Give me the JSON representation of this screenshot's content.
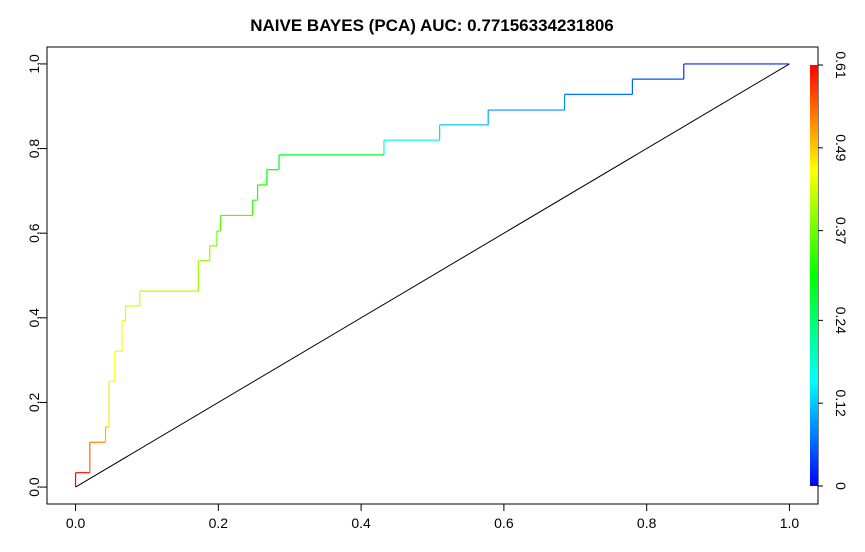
{
  "chart_data": {
    "type": "line",
    "title": "NAIVE BAYES (PCA) AUC: 0.77156334231806",
    "xlim": [
      -0.04,
      1.04
    ],
    "ylim": [
      -0.04,
      1.04
    ],
    "x_ticks": [
      0.0,
      0.2,
      0.4,
      0.6,
      0.8,
      1.0
    ],
    "x_tick_labels": [
      "0.0",
      "0.2",
      "0.4",
      "0.6",
      "0.8",
      "1.0"
    ],
    "y_ticks": [
      0.0,
      0.2,
      0.4,
      0.6,
      0.8,
      1.0
    ],
    "y_tick_labels": [
      "0,0",
      "0,2",
      "0,4",
      "0,6",
      "0,8",
      "1,0"
    ],
    "grid": false,
    "roc_curve": {
      "x": [
        0.0,
        0.0,
        0.02,
        0.02,
        0.042,
        0.042,
        0.047,
        0.047,
        0.055,
        0.055,
        0.065,
        0.065,
        0.07,
        0.07,
        0.09,
        0.09,
        0.172,
        0.172,
        0.188,
        0.188,
        0.198,
        0.198,
        0.203,
        0.203,
        0.248,
        0.248,
        0.255,
        0.255,
        0.268,
        0.268,
        0.285,
        0.285,
        0.432,
        0.432,
        0.51,
        0.51,
        0.578,
        0.578,
        0.685,
        0.685,
        0.78,
        0.78,
        0.852,
        0.852,
        1.0
      ],
      "y": [
        0.0,
        0.034,
        0.034,
        0.106,
        0.106,
        0.142,
        0.142,
        0.25,
        0.25,
        0.321,
        0.321,
        0.393,
        0.393,
        0.428,
        0.428,
        0.463,
        0.463,
        0.535,
        0.535,
        0.57,
        0.57,
        0.605,
        0.605,
        0.642,
        0.642,
        0.678,
        0.678,
        0.714,
        0.714,
        0.75,
        0.75,
        0.785,
        0.785,
        0.82,
        0.82,
        0.856,
        0.856,
        0.891,
        0.891,
        0.928,
        0.928,
        0.964,
        0.964,
        1.0,
        1.0
      ],
      "threshold": [
        0.61,
        0.6,
        0.55,
        0.53,
        0.5,
        0.49,
        0.47,
        0.46,
        0.46,
        0.45,
        0.45,
        0.44,
        0.44,
        0.43,
        0.43,
        0.42,
        0.4,
        0.39,
        0.39,
        0.38,
        0.37,
        0.36,
        0.36,
        0.35,
        0.34,
        0.33,
        0.33,
        0.32,
        0.31,
        0.3,
        0.29,
        0.28,
        0.17,
        0.16,
        0.13,
        0.12,
        0.1,
        0.09,
        0.08,
        0.07,
        0.06,
        0.05,
        0.03,
        0.02,
        0.0
      ]
    },
    "diagonal": {
      "x": [
        0,
        1
      ],
      "y": [
        0,
        1
      ],
      "color": "#000000"
    },
    "colorbar": {
      "min": 0,
      "max": 0.61,
      "tick_values": [
        0,
        0.12,
        0.24,
        0.37,
        0.49,
        0.61
      ],
      "tick_labels": [
        "0",
        "0.12",
        "0.24",
        "0.37",
        "0.49",
        "0.61"
      ],
      "colors": [
        "#0000ff",
        "#00ffff",
        "#00ff00",
        "#ffff00",
        "#ff0000"
      ]
    }
  }
}
